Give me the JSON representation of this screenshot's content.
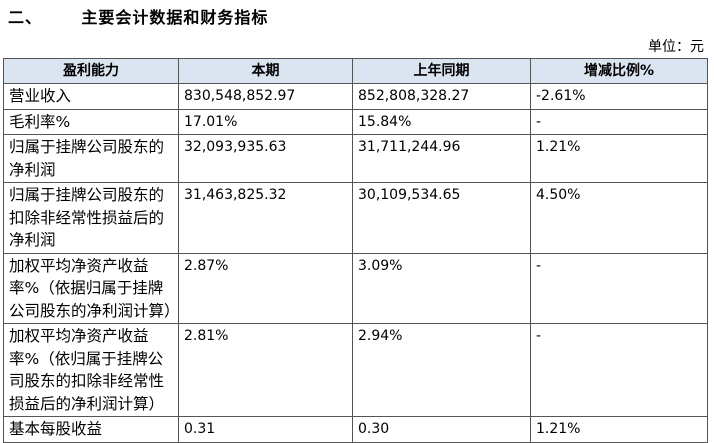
{
  "header": {
    "title": "二、      主要会计数据和财务指标",
    "unit": "单位：元"
  },
  "table": {
    "header": [
      "盈利能力",
      "本期",
      "上年同期",
      "增减比例%"
    ],
    "rows": [
      [
        "营业收入",
        "830,548,852.97",
        "852,808,328.27",
        "-2.61%"
      ],
      [
        "毛利率%",
        "17.01%",
        "15.84%",
        "-"
      ],
      [
        "归属于挂牌公司股东的净利润",
        "32,093,935.63",
        "31,711,244.96",
        "1.21%"
      ],
      [
        "归属于挂牌公司股东的扣除非经常性损益后的净利润",
        "31,463,825.32",
        "30,109,534.65",
        "4.50%"
      ],
      [
        "加权平均净资产收益率%（依据归属于挂牌公司股东的净利润计算）",
        "2.87%",
        "3.09%",
        "-"
      ],
      [
        "加权平均净资产收益率%（依归属于挂牌公司股东的扣除非经常性损益后的净利润计算）",
        "2.81%",
        "2.94%",
        "-"
      ],
      [
        "基本每股收益",
        "0.31",
        "0.30",
        "1.21%"
      ]
    ]
  }
}
